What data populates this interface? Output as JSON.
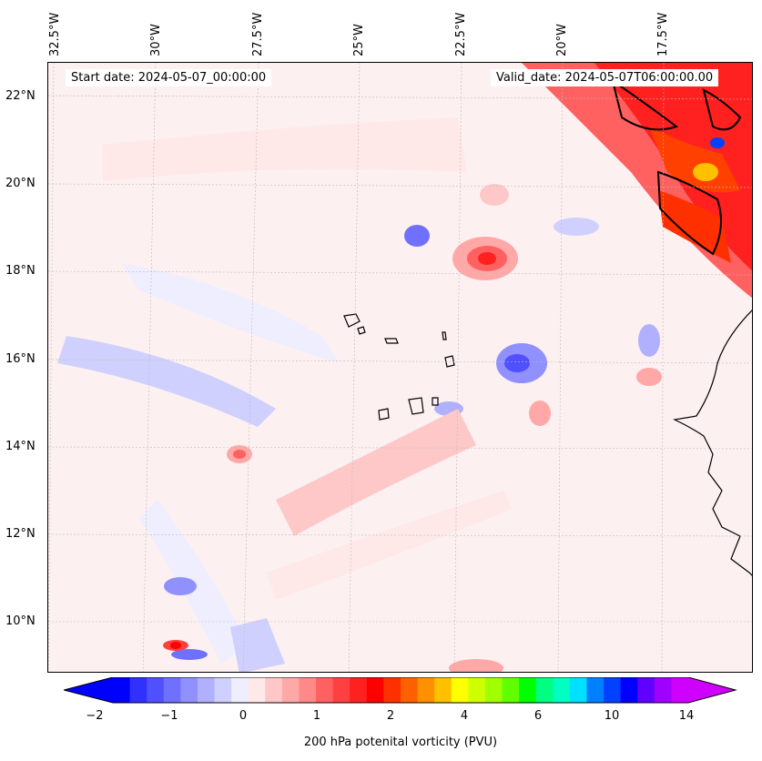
{
  "map": {
    "start_date": "Start date: 2024-05-07_00:00:00",
    "valid_date": "Valid_date: 2024-05-07T06:00:00.00",
    "lon_labels": [
      "32.5°W",
      "30°W",
      "27.5°W",
      "25°W",
      "22.5°W",
      "20°W",
      "17.5°W"
    ],
    "lat_labels": [
      "22°N",
      "20°N",
      "18°N",
      "16°N",
      "14°N",
      "12°N",
      "10°N"
    ],
    "gridlines": "on",
    "background_color": "#fdf0f0"
  },
  "colorbar": {
    "ticks": [
      "−2",
      "−1",
      "0",
      "1",
      "2",
      "4",
      "6",
      "10",
      "14"
    ],
    "label": "200 hPa potenital vorticity (PVU)",
    "extend": "both",
    "colors": [
      "#0000ff",
      "#3030ff",
      "#5050ff",
      "#7070ff",
      "#9090ff",
      "#b0b0ff",
      "#d0d0ff",
      "#eeeeff",
      "#ffe8e8",
      "#ffc8c8",
      "#ffa8a8",
      "#ff8888",
      "#ff6060",
      "#ff4040",
      "#ff2020",
      "#ff0000",
      "#ff3000",
      "#ff6000",
      "#ff9000",
      "#ffc000",
      "#ffff00",
      "#d0ff00",
      "#a0ff00",
      "#60ff00",
      "#00ff00",
      "#00ff80",
      "#00ffc0",
      "#00e0ff",
      "#0080ff",
      "#0040ff",
      "#0000ff",
      "#6000ff",
      "#a000ff",
      "#d000ff"
    ]
  }
}
